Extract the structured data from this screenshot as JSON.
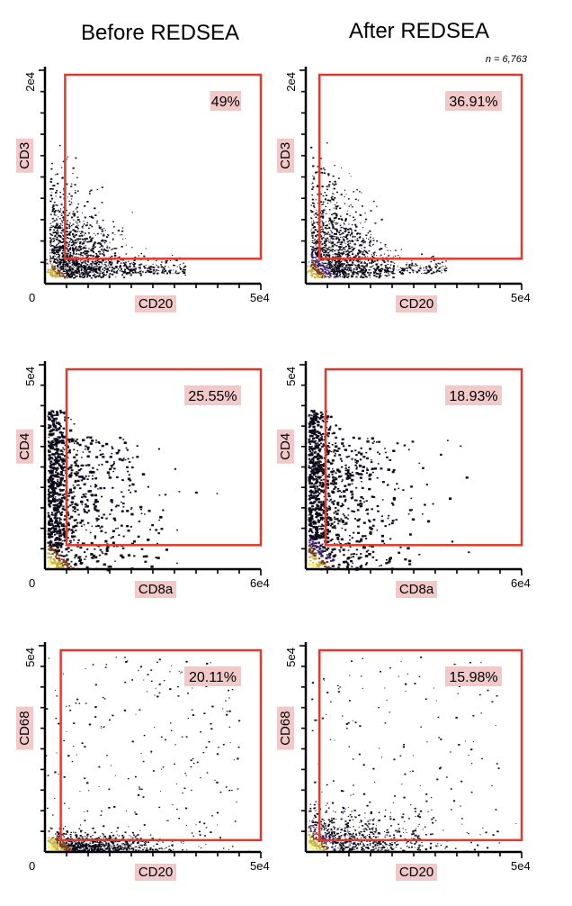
{
  "headers": {
    "left": "Before REDSEA",
    "right": "After REDSEA"
  },
  "n_label": "n = 6,763",
  "colors": {
    "gate": "#e03a2f",
    "label_bg": "#f2c9c9",
    "density": [
      "#0d0a1a",
      "#3a1e6b",
      "#7a3f1e",
      "#c9b23a",
      "#f5f07a"
    ]
  },
  "chart_data": [
    {
      "type": "scatter",
      "panel": "before-cd3-cd20",
      "xlabel": "CD20",
      "ylabel": "CD3",
      "x_min_label": "0",
      "x_max_label": "5e4",
      "y_max_label": "2e4",
      "xlim": [
        0,
        50000
      ],
      "ylim": [
        0,
        20000
      ],
      "gate": {
        "x": [
          3000,
          50000
        ],
        "y": [
          2000,
          20000
        ]
      },
      "gate_percent": "49%"
    },
    {
      "type": "scatter",
      "panel": "after-cd3-cd20",
      "xlabel": "CD20",
      "ylabel": "CD3",
      "x_min_label": "",
      "x_max_label": "5e4",
      "y_max_label": "2e4",
      "xlim": [
        0,
        50000
      ],
      "ylim": [
        0,
        20000
      ],
      "gate": {
        "x": [
          1500,
          50000
        ],
        "y": [
          2000,
          20000
        ]
      },
      "gate_percent": "36.91%"
    },
    {
      "type": "scatter",
      "panel": "before-cd4-cd8a",
      "xlabel": "CD8a",
      "ylabel": "CD4",
      "x_min_label": "0",
      "x_max_label": "6e4",
      "y_max_label": "5e4",
      "xlim": [
        0,
        60000
      ],
      "ylim": [
        0,
        50000
      ],
      "gate": {
        "x": [
          4000,
          60000
        ],
        "y": [
          5000,
          50000
        ]
      },
      "gate_percent": "25.55%"
    },
    {
      "type": "scatter",
      "panel": "after-cd4-cd8a",
      "xlabel": "CD8a",
      "ylabel": "CD4",
      "x_min_label": "",
      "x_max_label": "6e4",
      "y_max_label": "5e4",
      "xlim": [
        0,
        60000
      ],
      "ylim": [
        0,
        50000
      ],
      "gate": {
        "x": [
          3500,
          60000
        ],
        "y": [
          5000,
          50000
        ]
      },
      "gate_percent": "18.93%"
    },
    {
      "type": "scatter",
      "panel": "before-cd68-cd20",
      "xlabel": "CD20",
      "ylabel": "CD68",
      "x_min_label": "0",
      "x_max_label": "5e4",
      "y_max_label": "5e4",
      "xlim": [
        0,
        50000
      ],
      "ylim": [
        0,
        50000
      ],
      "gate": {
        "x": [
          2000,
          50000
        ],
        "y": [
          2000,
          50000
        ]
      },
      "gate_percent": "20.11%"
    },
    {
      "type": "scatter",
      "panel": "after-cd68-cd20",
      "xlabel": "CD20",
      "ylabel": "CD68",
      "x_min_label": "",
      "x_max_label": "5e4",
      "y_max_label": "5e4",
      "xlim": [
        0,
        50000
      ],
      "ylim": [
        0,
        50000
      ],
      "gate": {
        "x": [
          1500,
          50000
        ],
        "y": [
          2000,
          50000
        ]
      },
      "gate_percent": "15.98%"
    }
  ]
}
